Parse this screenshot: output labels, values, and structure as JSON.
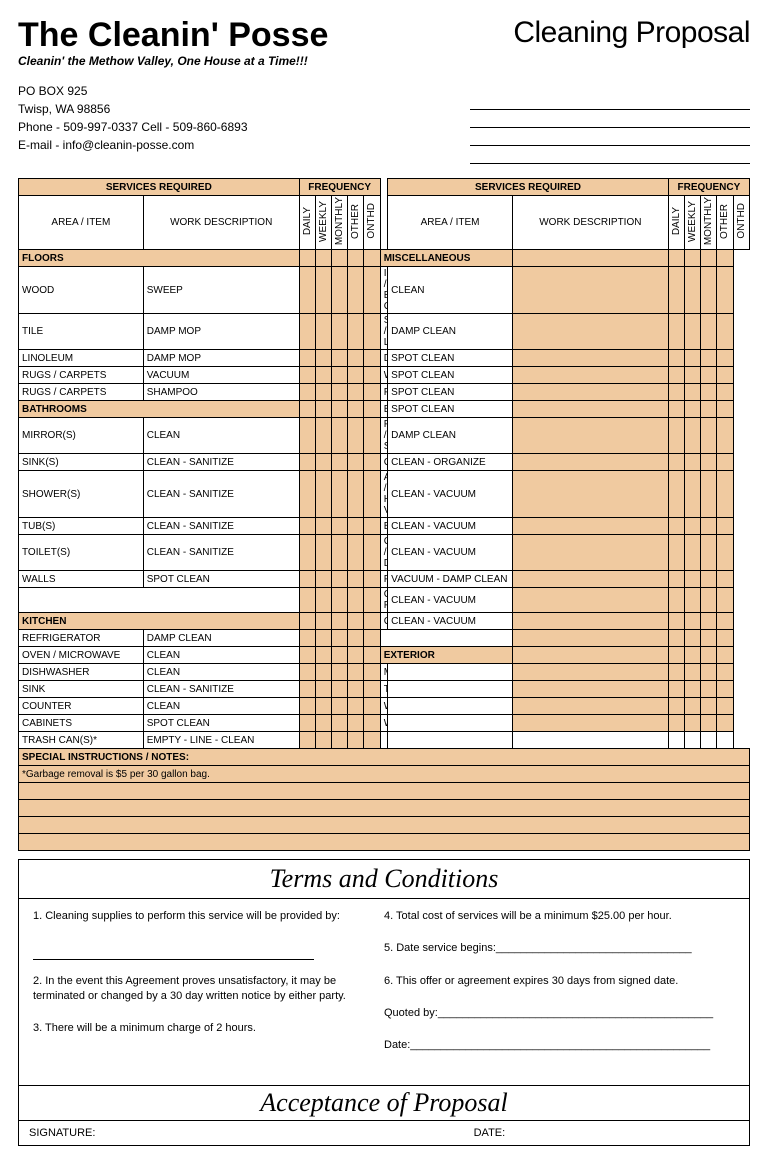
{
  "header": {
    "company": "The Cleanin' Posse",
    "proposal": "Cleaning Proposal",
    "tagline": "Cleanin' the Methow Valley, One House at a Time!!!",
    "addr1": "PO BOX 925",
    "addr2": "Twisp, WA 98856",
    "phone": "Phone - 509-997-0337  Cell - 509-860-6893",
    "email": "E-mail - info@cleanin-posse.com"
  },
  "colors": {
    "peach": "#f0caa0",
    "border": "#000000"
  },
  "tableHdr": {
    "services": "SERVICES REQUIRED",
    "frequency": "FREQUENCY",
    "area": "AREA / ITEM",
    "work": "WORK DESCRIPTION",
    "freq_labels": [
      "DAILY",
      "WEEKLY",
      "MONTHLY",
      "OTHER",
      "ONTHD"
    ]
  },
  "left": {
    "sections": [
      {
        "hdr": "FLOORS",
        "rows": [
          {
            "a": "WOOD",
            "w": "SWEEP"
          },
          {
            "a": "TILE",
            "w": "DAMP MOP"
          },
          {
            "a": "LINOLEUM",
            "w": "DAMP MOP"
          },
          {
            "a": "RUGS / CARPETS",
            "w": "VACUUM"
          },
          {
            "a": "RUGS / CARPETS",
            "w": "SHAMPOO"
          }
        ]
      },
      {
        "hdr": "BATHROOMS",
        "rows": [
          {
            "a": "MIRROR(S)",
            "w": "CLEAN"
          },
          {
            "a": "SINK(S)",
            "w": "CLEAN - SANITIZE"
          },
          {
            "a": "SHOWER(S)",
            "w": "CLEAN - SANITIZE"
          },
          {
            "a": "TUB(S)",
            "w": "CLEAN - SANITIZE"
          },
          {
            "a": "TOILET(S)",
            "w": "CLEAN - SANITIZE"
          },
          {
            "a": "WALLS",
            "w": "SPOT CLEAN"
          }
        ]
      },
      {
        "hdr": "",
        "rows": []
      },
      {
        "hdr": "KITCHEN",
        "rows": [
          {
            "a": "REFRIGERATOR",
            "w": "DAMP CLEAN"
          },
          {
            "a": "OVEN / MICROWAVE",
            "w": "CLEAN"
          },
          {
            "a": "DISHWASHER",
            "w": "CLEAN"
          },
          {
            "a": "SINK",
            "w": "CLEAN - SANITIZE"
          },
          {
            "a": "COUNTER",
            "w": "CLEAN"
          },
          {
            "a": "CABINETS",
            "w": "SPOT CLEAN"
          },
          {
            "a": "TRASH CAN(S)*",
            "w": "EMPTY - LINE - CLEAN"
          }
        ]
      }
    ]
  },
  "right": {
    "sections": [
      {
        "hdr": "MISCELLANEOUS",
        "rows": [
          {
            "a": "INT / EXT GLASS",
            "w": "CLEAN"
          },
          {
            "a": "SILLS / LEDGES",
            "w": "DAMP CLEAN"
          },
          {
            "a": "DOORS",
            "w": "SPOT CLEAN"
          },
          {
            "a": "WALLS",
            "w": "SPOT CLEAN"
          },
          {
            "a": "FRAMES",
            "w": "SPOT CLEAN"
          },
          {
            "a": "BASEBOARDS",
            "w": "SPOT CLEAN"
          },
          {
            "a": "FIXTURES / SWITCHES",
            "w": "DAMP CLEAN"
          },
          {
            "a": "CLOSETS",
            "w": "CLEAN - ORGANIZE"
          },
          {
            "a": "AC / HEATING VENTS",
            "w": "CLEAN - VACUUM"
          },
          {
            "a": "BLINDS",
            "w": "CLEAN - VACUUM"
          },
          {
            "a": "CURTAINS / DRAPES",
            "w": "CLEAN - VACUUM"
          },
          {
            "a": "FURNITURE",
            "w": "VACUUM - DAMP CLEAN"
          },
          {
            "a": "CEILING FANS",
            "w": "CLEAN - VACUUM"
          },
          {
            "a": "COBWEBS",
            "w": "CLEAN - VACUUM"
          }
        ]
      },
      {
        "hdr": "",
        "rows": []
      },
      {
        "hdr": "EXTERIOR",
        "rows": [
          {
            "a": "MOWING",
            "w": ""
          },
          {
            "a": "TRIMMING",
            "w": ""
          },
          {
            "a": "WEEDING",
            "w": ""
          },
          {
            "a": "WATERING",
            "w": ""
          }
        ]
      }
    ]
  },
  "notes": {
    "label": "SPECIAL INSTRUCTIONS / NOTES:",
    "text": "*Garbage removal is $5 per 30 gallon bag."
  },
  "terms": {
    "title": "Terms and Conditions",
    "t1": "1.  Cleaning supplies to perform this service will be provided by:",
    "t2": "2.  In the event this Agreement proves unsatisfactory, it may be terminated or changed by a 30 day written notice by either party.",
    "t3": "3.  There will be a minimum charge of 2 hours.",
    "t4": "4.  Total cost of services will be a minimum $25.00 per hour.",
    "t5": "5.  Date service begins:________________________________",
    "t6": "6.  This offer or agreement expires 30 days from signed date.",
    "quoted": "Quoted by:_____________________________________________",
    "date": "Date:_________________________________________________"
  },
  "accept": {
    "title": "Acceptance of Proposal",
    "sig": "SIGNATURE:",
    "date": "DATE:"
  }
}
